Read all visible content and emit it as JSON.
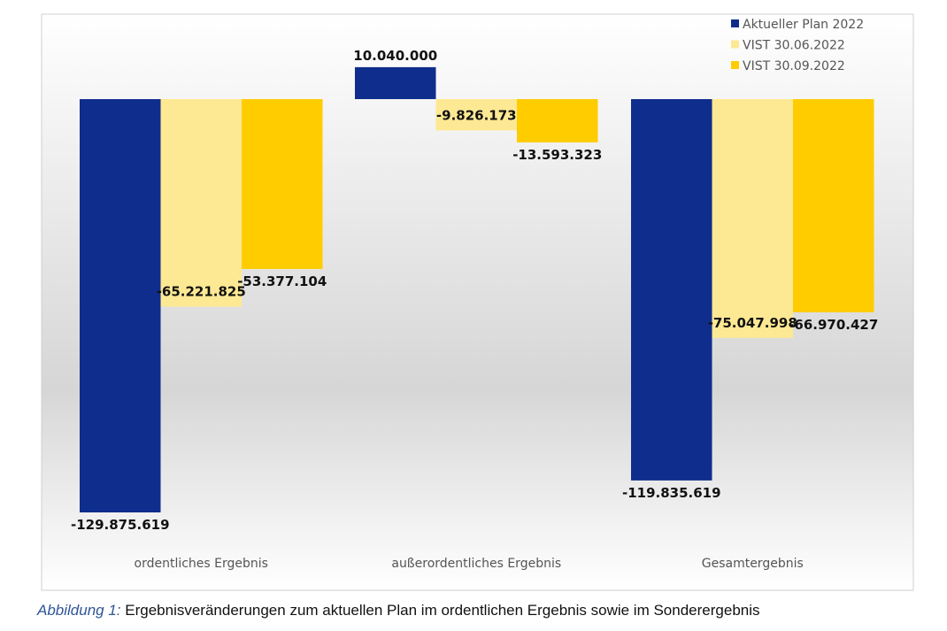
{
  "chart_data": {
    "type": "bar",
    "title": "",
    "xlabel": "",
    "ylabel": "",
    "categories": [
      "ordentliches Ergebnis",
      "außerordentliches Ergebnis",
      "Gesamtergebnis"
    ],
    "series": [
      {
        "name": "Aktueller Plan 2022",
        "color": "#0f2d8c",
        "values": [
          -129875619,
          10040000,
          -119835619
        ],
        "labels": [
          "-129.875.619",
          "10.040.000",
          "-119.835.619"
        ]
      },
      {
        "name": "VIST 30.06.2022",
        "color": "#fde993",
        "values": [
          -65221825,
          -9826173,
          -75047998
        ],
        "labels": [
          "-65.221.825",
          "-9.826.173",
          "-75.047.998"
        ]
      },
      {
        "name": "VIST 30.09.2022",
        "color": "#ffcc00",
        "values": [
          -53377104,
          -13593323,
          -66970427
        ],
        "labels": [
          "-53.377.104",
          "-13.593.323",
          "-66.970.427"
        ]
      }
    ],
    "grid": false,
    "legend": "top-right"
  },
  "caption": {
    "lead": "Abbildung 1:",
    "text": " Ergebnisveränderungen zum aktuellen Plan im ordentlichen Ergebnis sowie im Sonderergebnis"
  }
}
